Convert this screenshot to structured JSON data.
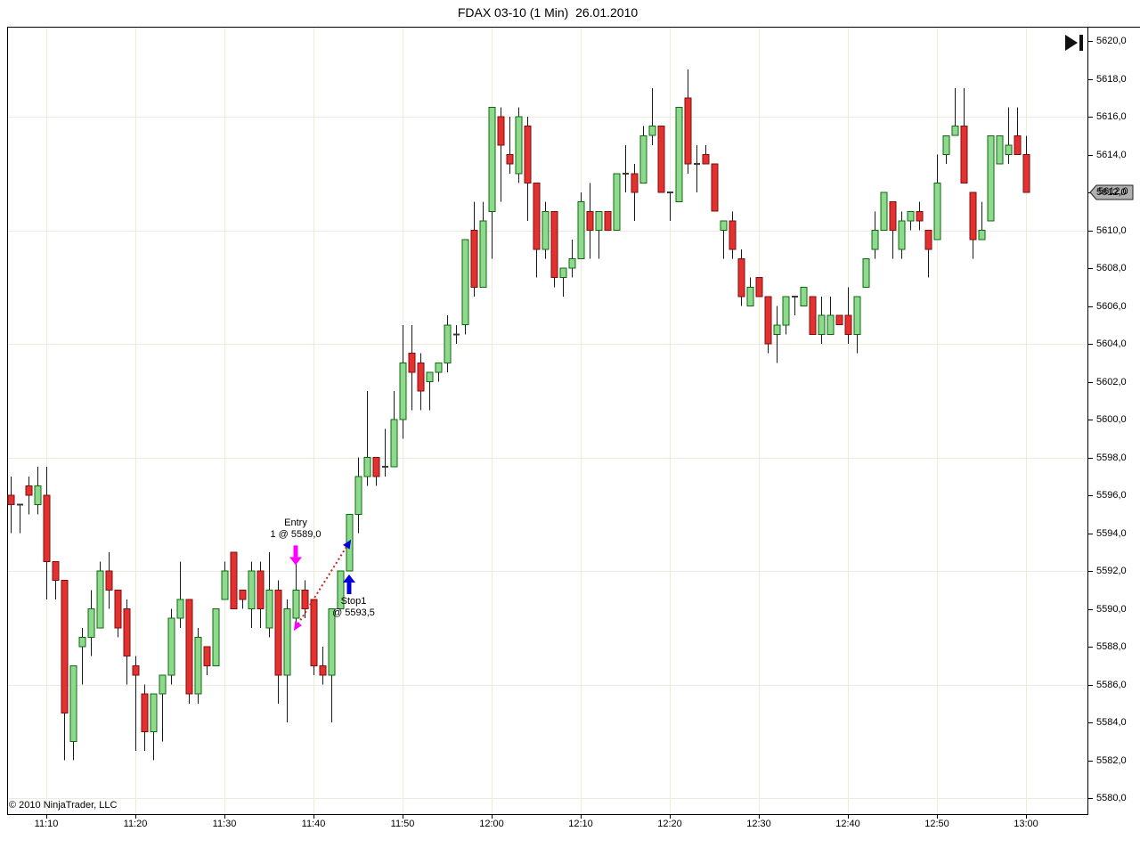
{
  "window": {
    "title": "FDAX 03-10 (1 Min)  26.01.2010"
  },
  "chart": {
    "copyright": "© 2010 NinjaTrader, LLC",
    "price_marker": {
      "label": "5612,0"
    },
    "replay_icon": "go-to-last-bar",
    "annotations": {
      "entry": {
        "line1": "Entry",
        "line2": "1 @ 5589,0",
        "arrow_color": "#FF00FF",
        "arrow_direction": "down"
      },
      "stop": {
        "line1": "Stop1",
        "line2": "@ 5593,5",
        "arrow_color": "#0000DD",
        "arrow_direction": "up"
      }
    },
    "colors": {
      "up_fill": "#8FD98F",
      "up_stroke": "#0B6B0B",
      "down_fill": "#E53030",
      "down_stroke": "#7E0E0E",
      "wick": "#1A1A1A",
      "doji": "#3A3A3A",
      "grid": "#F0EADE",
      "axis": "#000000",
      "trade_line": "#D02020",
      "marker_bg": "#B0B0B0",
      "icon": "#111111"
    }
  },
  "chart_data": {
    "type": "candlestick",
    "title": "FDAX 03-10 (1 Min)  26.01.2010",
    "instrument": "FDAX 03-10",
    "interval": "1 Min",
    "date": "26.01.2010",
    "legend_position": "none",
    "grid": true,
    "ylim": [
      5579,
      5621
    ],
    "last_price": 5612.0,
    "y_tick_labels": [
      "5620,0",
      "5618,0",
      "5616,0",
      "5614,0",
      "5612,0",
      "5610,0",
      "5608,0",
      "5606,0",
      "5604,0",
      "5602,0",
      "5600,0",
      "5598,0",
      "5596,0",
      "5594,0",
      "5592,0",
      "5590,0",
      "5588,0",
      "5586,0",
      "5584,0",
      "5582,0",
      "5580,0"
    ],
    "y_tick_values": [
      5620,
      5618,
      5616,
      5614,
      5612,
      5610,
      5608,
      5606,
      5604,
      5602,
      5600,
      5598,
      5596,
      5594,
      5592,
      5590,
      5588,
      5586,
      5584,
      5582,
      5580
    ],
    "y_grid_values": [
      5616,
      5610,
      5604,
      5598,
      5592,
      5586,
      5580
    ],
    "x_tick_labels": [
      "11:10",
      "11:20",
      "11:30",
      "11:40",
      "11:50",
      "12:00",
      "12:10",
      "12:20",
      "12:30",
      "12:40",
      "12:50",
      "13:00"
    ],
    "trade": {
      "entry_time": "11:38",
      "entry_price": 5589.0,
      "quantity": 1,
      "exit_time": "11:44",
      "exit_price": 5593.5,
      "stop_name": "Stop1",
      "direction": "short",
      "result": "loss",
      "line_style": "dotted"
    },
    "columns": [
      "time",
      "open",
      "high",
      "low",
      "close"
    ],
    "bars": [
      [
        "11:06",
        5596.0,
        5597.0,
        5594.0,
        5595.5
      ],
      [
        "11:07",
        5595.5,
        5595.5,
        5594.0,
        5595.5
      ],
      [
        "11:08",
        5596.5,
        5597.0,
        5595.0,
        5596.0
      ],
      [
        "11:09",
        5595.5,
        5597.5,
        5595.0,
        5596.5
      ],
      [
        "11:10",
        5596.0,
        5597.5,
        5590.5,
        5592.5
      ],
      [
        "11:11",
        5592.5,
        5592.5,
        5590.5,
        5591.5
      ],
      [
        "11:12",
        5591.5,
        5591.5,
        5582.0,
        5584.5
      ],
      [
        "11:13",
        5583.0,
        5587.0,
        5582.0,
        5587.0
      ],
      [
        "11:14",
        5588.0,
        5589.0,
        5586.0,
        5588.5
      ],
      [
        "11:15",
        5588.5,
        5591.0,
        5587.5,
        5590.0
      ],
      [
        "11:16",
        5589.0,
        5592.5,
        5589.0,
        5592.0
      ],
      [
        "11:17",
        5592.0,
        5593.0,
        5590.0,
        5591.0
      ],
      [
        "11:18",
        5591.0,
        5591.0,
        5588.5,
        5589.0
      ],
      [
        "11:19",
        5590.0,
        5590.5,
        5586.0,
        5587.5
      ],
      [
        "11:20",
        5587.0,
        5587.5,
        5582.5,
        5586.5
      ],
      [
        "11:21",
        5585.5,
        5586.0,
        5582.5,
        5583.5
      ],
      [
        "11:22",
        5583.5,
        5585.5,
        5582.0,
        5585.5
      ],
      [
        "11:23",
        5585.5,
        5586.5,
        5583.0,
        5586.5
      ],
      [
        "11:24",
        5586.5,
        5590.0,
        5586.0,
        5589.5
      ],
      [
        "11:25",
        5589.5,
        5592.5,
        5589.0,
        5590.5
      ],
      [
        "11:26",
        5590.5,
        5590.5,
        5585.0,
        5585.5
      ],
      [
        "11:27",
        5585.5,
        5589.0,
        5585.0,
        5588.5
      ],
      [
        "11:28",
        5588.0,
        5588.0,
        5586.5,
        5587.0
      ],
      [
        "11:29",
        5587.0,
        5590.0,
        5587.0,
        5590.0
      ],
      [
        "11:30",
        5590.5,
        5592.5,
        5590.5,
        5592.0
      ],
      [
        "11:31",
        5593.0,
        5593.0,
        5590.0,
        5590.0
      ],
      [
        "11:32",
        5591.0,
        5591.0,
        5590.0,
        5590.5
      ],
      [
        "11:33",
        5590.0,
        5592.5,
        5589.0,
        5592.0
      ],
      [
        "11:34",
        5592.0,
        5592.5,
        5589.0,
        5590.0
      ],
      [
        "11:35",
        5589.0,
        5593.0,
        5588.5,
        5591.0
      ],
      [
        "11:36",
        5591.0,
        5591.5,
        5585.0,
        5586.5
      ],
      [
        "11:37",
        5586.5,
        5590.5,
        5584.0,
        5590.0
      ],
      [
        "11:38",
        5589.5,
        5592.5,
        5589.0,
        5591.0
      ],
      [
        "11:39",
        5591.0,
        5591.5,
        5589.5,
        5590.0
      ],
      [
        "11:40",
        5590.5,
        5590.5,
        5586.5,
        5587.0
      ],
      [
        "11:41",
        5587.0,
        5588.0,
        5586.0,
        5586.5
      ],
      [
        "11:42",
        5586.5,
        5590.0,
        5584.0,
        5590.0
      ],
      [
        "11:43",
        5590.0,
        5592.0,
        5590.0,
        5592.0
      ],
      [
        "11:44",
        5592.0,
        5595.0,
        5592.0,
        5595.0
      ],
      [
        "11:45",
        5595.0,
        5598.0,
        5594.0,
        5597.0
      ],
      [
        "11:46",
        5597.0,
        5601.5,
        5596.5,
        5598.0
      ],
      [
        "11:47",
        5598.0,
        5598.0,
        5596.5,
        5597.0
      ],
      [
        "11:48",
        5597.5,
        5599.5,
        5597.0,
        5597.5
      ],
      [
        "11:49",
        5597.5,
        5601.5,
        5597.5,
        5600.0
      ],
      [
        "11:50",
        5600.0,
        5605.0,
        5599.0,
        5603.0
      ],
      [
        "11:51",
        5603.5,
        5605.0,
        5600.5,
        5602.5
      ],
      [
        "11:52",
        5603.0,
        5603.5,
        5600.5,
        5601.5
      ],
      [
        "11:53",
        5602.0,
        5602.5,
        5600.5,
        5602.5
      ],
      [
        "11:54",
        5602.5,
        5603.0,
        5602.0,
        5603.0
      ],
      [
        "11:55",
        5603.0,
        5605.5,
        5602.5,
        5605.0
      ],
      [
        "11:56",
        5604.5,
        5605.0,
        5604.0,
        5604.5
      ],
      [
        "11:57",
        5605.0,
        5609.5,
        5604.5,
        5609.5
      ],
      [
        "11:58",
        5610.0,
        5611.5,
        5606.5,
        5607.0
      ],
      [
        "11:59",
        5607.0,
        5611.5,
        5607.0,
        5610.5
      ],
      [
        "12:00",
        5611.0,
        5616.5,
        5608.5,
        5616.5
      ],
      [
        "12:01",
        5616.0,
        5616.5,
        5611.5,
        5614.5
      ],
      [
        "12:02",
        5614.0,
        5616.0,
        5613.0,
        5613.5
      ],
      [
        "12:03",
        5613.0,
        5616.5,
        5612.5,
        5616.0
      ],
      [
        "12:04",
        5615.5,
        5616.0,
        5610.5,
        5612.5
      ],
      [
        "12:05",
        5612.5,
        5612.5,
        5607.5,
        5609.0
      ],
      [
        "12:06",
        5609.0,
        5611.5,
        5608.5,
        5611.0
      ],
      [
        "12:07",
        5611.0,
        5611.0,
        5607.0,
        5607.5
      ],
      [
        "12:08",
        5607.5,
        5608.0,
        5606.5,
        5608.0
      ],
      [
        "12:09",
        5608.0,
        5609.5,
        5607.5,
        5608.5
      ],
      [
        "12:10",
        5608.5,
        5612.0,
        5608.5,
        5611.5
      ],
      [
        "12:11",
        5611.0,
        5612.5,
        5608.5,
        5610.0
      ],
      [
        "12:12",
        5610.0,
        5611.0,
        5608.5,
        5611.0
      ],
      [
        "12:13",
        5611.0,
        5611.0,
        5610.0,
        5610.0
      ],
      [
        "12:14",
        5610.0,
        5613.0,
        5610.0,
        5613.0
      ],
      [
        "12:15",
        5613.0,
        5614.5,
        5612.0,
        5613.0
      ],
      [
        "12:16",
        5613.0,
        5613.5,
        5610.5,
        5612.0
      ],
      [
        "12:17",
        5612.5,
        5615.5,
        5612.5,
        5615.0
      ],
      [
        "12:18",
        5615.0,
        5617.5,
        5614.5,
        5615.5
      ],
      [
        "12:19",
        5615.5,
        5615.5,
        5612.0,
        5612.0
      ],
      [
        "12:20",
        5612.0,
        5612.0,
        5610.5,
        5612.0
      ],
      [
        "12:21",
        5611.5,
        5616.5,
        5611.5,
        5616.5
      ],
      [
        "12:22",
        5617.0,
        5618.5,
        5613.0,
        5613.5
      ],
      [
        "12:23",
        5613.5,
        5614.5,
        5612.0,
        5613.5
      ],
      [
        "12:24",
        5614.0,
        5614.5,
        5613.5,
        5613.5
      ],
      [
        "12:25",
        5613.5,
        5613.5,
        5611.0,
        5611.0
      ],
      [
        "12:26",
        5610.0,
        5610.5,
        5608.5,
        5610.5
      ],
      [
        "12:27",
        5610.5,
        5611.0,
        5608.5,
        5609.0
      ],
      [
        "12:28",
        5608.5,
        5609.0,
        5606.0,
        5606.5
      ],
      [
        "12:29",
        5606.0,
        5607.5,
        5606.0,
        5607.0
      ],
      [
        "12:30",
        5607.5,
        5607.5,
        5606.5,
        5606.5
      ],
      [
        "12:31",
        5606.5,
        5606.5,
        5603.5,
        5604.0
      ],
      [
        "12:32",
        5604.5,
        5606.0,
        5603.0,
        5605.0
      ],
      [
        "12:33",
        5605.0,
        5606.5,
        5604.5,
        5606.5
      ],
      [
        "12:34",
        5606.5,
        5606.5,
        5605.5,
        5606.5
      ],
      [
        "12:35",
        5606.0,
        5607.0,
        5606.0,
        5607.0
      ],
      [
        "12:36",
        5606.5,
        5606.5,
        5604.5,
        5604.5
      ],
      [
        "12:37",
        5604.5,
        5606.5,
        5604.0,
        5605.5
      ],
      [
        "12:38",
        5604.5,
        5606.5,
        5604.5,
        5605.5
      ],
      [
        "12:39",
        5605.5,
        5605.5,
        5605.0,
        5605.0
      ],
      [
        "12:40",
        5605.5,
        5607.0,
        5604.0,
        5604.5
      ],
      [
        "12:41",
        5604.5,
        5606.5,
        5603.5,
        5606.5
      ],
      [
        "12:42",
        5607.0,
        5608.5,
        5607.0,
        5608.5
      ],
      [
        "12:43",
        5609.0,
        5611.0,
        5608.5,
        5610.0
      ],
      [
        "12:44",
        5610.0,
        5612.0,
        5610.0,
        5612.0
      ],
      [
        "12:45",
        5611.5,
        5611.5,
        5608.5,
        5610.0
      ],
      [
        "12:46",
        5609.0,
        5611.0,
        5608.5,
        5610.5
      ],
      [
        "12:47",
        5610.5,
        5611.0,
        5610.0,
        5611.0
      ],
      [
        "12:48",
        5611.0,
        5611.5,
        5610.0,
        5610.5
      ],
      [
        "12:49",
        5610.0,
        5610.0,
        5607.5,
        5609.0
      ],
      [
        "12:50",
        5609.5,
        5614.0,
        5609.5,
        5612.5
      ],
      [
        "12:51",
        5614.0,
        5615.0,
        5613.5,
        5615.0
      ],
      [
        "12:52",
        5615.0,
        5617.5,
        5615.0,
        5615.5
      ],
      [
        "12:53",
        5615.5,
        5617.5,
        5612.5,
        5612.5
      ],
      [
        "12:54",
        5612.0,
        5612.0,
        5608.5,
        5609.5
      ],
      [
        "12:55",
        5609.5,
        5611.5,
        5609.5,
        5610.0
      ],
      [
        "12:56",
        5610.5,
        5615.0,
        5610.5,
        5615.0
      ],
      [
        "12:57",
        5613.5,
        5615.0,
        5613.5,
        5615.0
      ],
      [
        "12:58",
        5614.0,
        5616.5,
        5613.5,
        5614.5
      ],
      [
        "12:59",
        5615.0,
        5616.5,
        5614.0,
        5614.0
      ],
      [
        "13:00",
        5614.0,
        5615.0,
        5612.0,
        5612.0
      ]
    ]
  }
}
